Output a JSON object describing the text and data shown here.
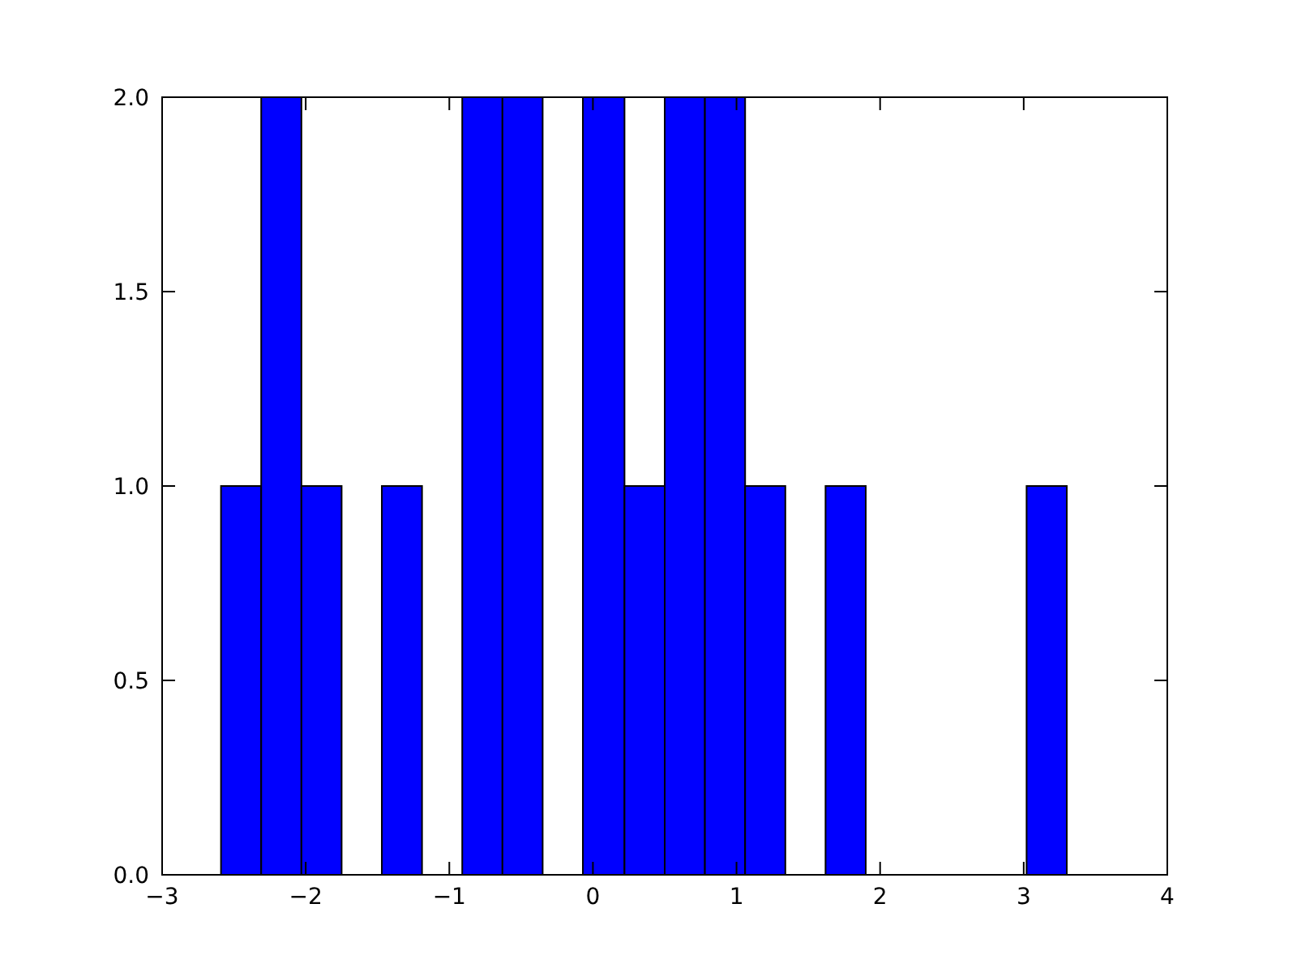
{
  "chart_data": {
    "type": "histogram",
    "color": "#0000ff",
    "bins": [
      -2.59,
      -2.31,
      -2.03,
      -1.75,
      -1.47,
      -1.19,
      -0.91,
      -0.63,
      -0.35,
      -0.07,
      0.22,
      0.5,
      0.78,
      1.06,
      1.34,
      1.62,
      1.9,
      3.02,
      3.3
    ],
    "values": [
      1,
      2,
      1,
      0,
      1,
      0,
      2,
      2,
      0,
      2,
      1,
      2,
      2,
      1,
      0,
      1,
      0,
      1
    ],
    "xlim": [
      -3,
      4
    ],
    "xticks": [
      {
        "value": -3,
        "label": "−3"
      },
      {
        "value": -2,
        "label": "−2"
      },
      {
        "value": -1,
        "label": "−1"
      },
      0,
      1,
      2,
      3,
      4
    ],
    "ylim": [
      0,
      2
    ],
    "yticks": [
      {
        "value": 0,
        "label": "0.0"
      },
      0.5,
      {
        "value": 1,
        "label": "1.0"
      },
      1.5,
      {
        "value": 2,
        "label": "2.0"
      }
    ],
    "grid": false
  }
}
